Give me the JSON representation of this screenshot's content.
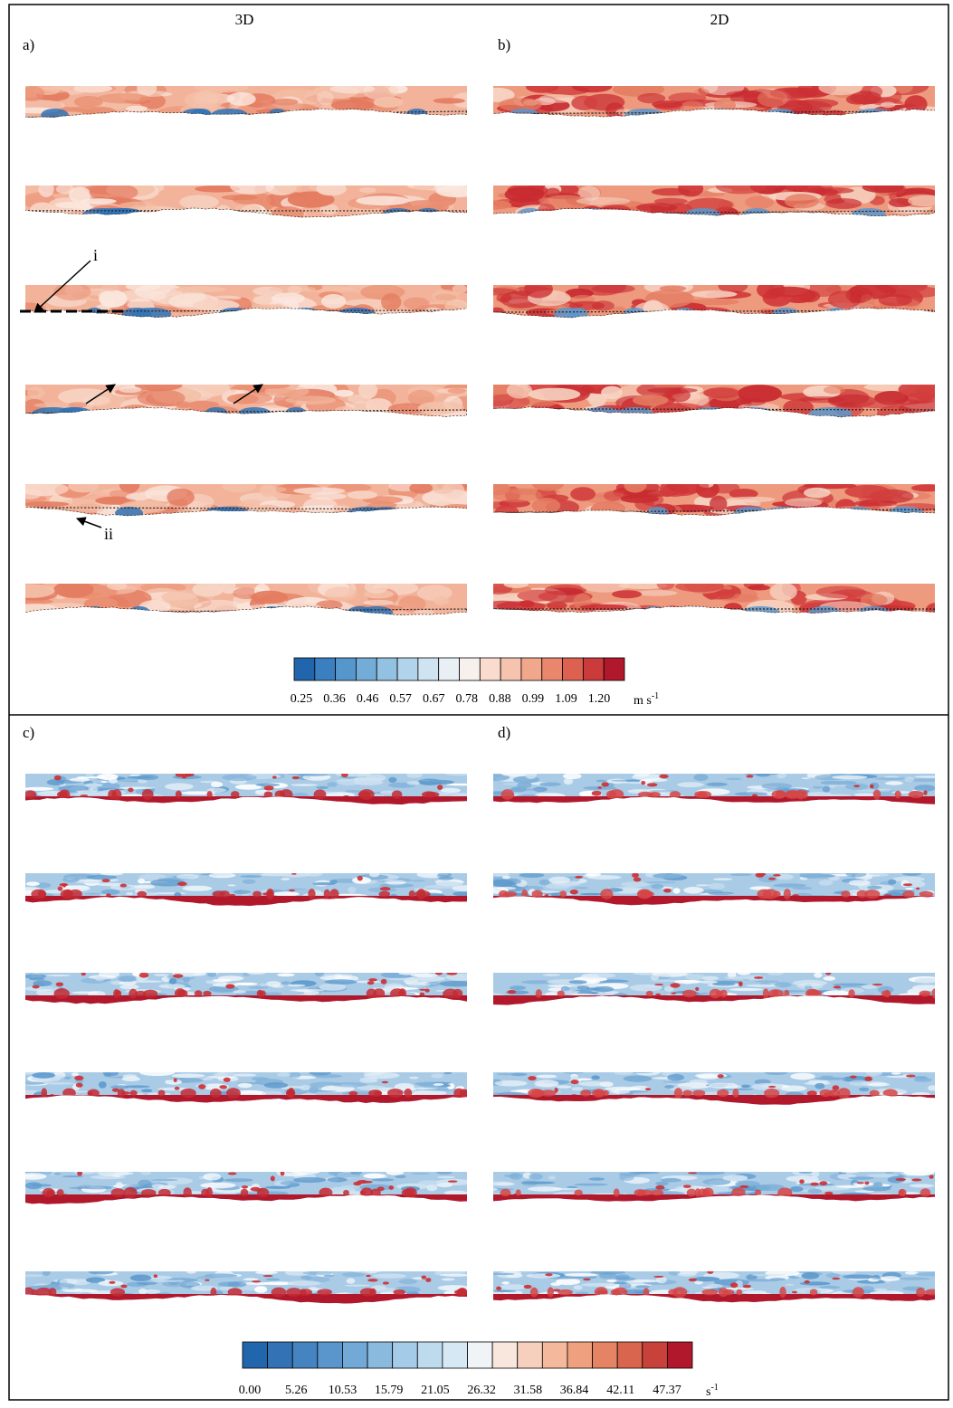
{
  "header": {
    "left_column": "3D",
    "right_column": "2D"
  },
  "panels": {
    "a": "a)",
    "b": "b)",
    "c": "c)",
    "d": "d)"
  },
  "annotations": {
    "i": "i",
    "ii": "ii"
  },
  "colorbar_velocity": {
    "labels": [
      "0.25",
      "0.36",
      "0.46",
      "0.57",
      "0.67",
      "0.78",
      "0.88",
      "0.99",
      "1.09",
      "1.20"
    ],
    "unit": "m s",
    "unit_exponent": "-1",
    "colors": [
      "#2166ac",
      "#3a7fbf",
      "#5597cc",
      "#74acd8",
      "#93c1e2",
      "#b2d4eb",
      "#cfe3f1",
      "#e8f0f6",
      "#f7f1ee",
      "#fadccf",
      "#f6c4ae",
      "#f1a78b",
      "#e8876b",
      "#dc624f",
      "#cc3b3c",
      "#b2182b"
    ]
  },
  "colorbar_vorticity": {
    "labels": [
      "0.00",
      "5.26",
      "10.53",
      "15.79",
      "21.05",
      "26.32",
      "31.58",
      "36.84",
      "42.11",
      "47.37"
    ],
    "unit": "s",
    "unit_exponent": "-1",
    "colors": [
      "#2166ac",
      "#3373b5",
      "#4584c0",
      "#5a96cb",
      "#72a9d6",
      "#8bbadf",
      "#a4cbe7",
      "#bedbee",
      "#d6e8f3",
      "#f0f4f7",
      "#f9e6dd",
      "#f7d0bd",
      "#f4b89c",
      "#eea07f",
      "#e58464",
      "#d9654e",
      "#c8423b",
      "#b2182b"
    ]
  }
}
